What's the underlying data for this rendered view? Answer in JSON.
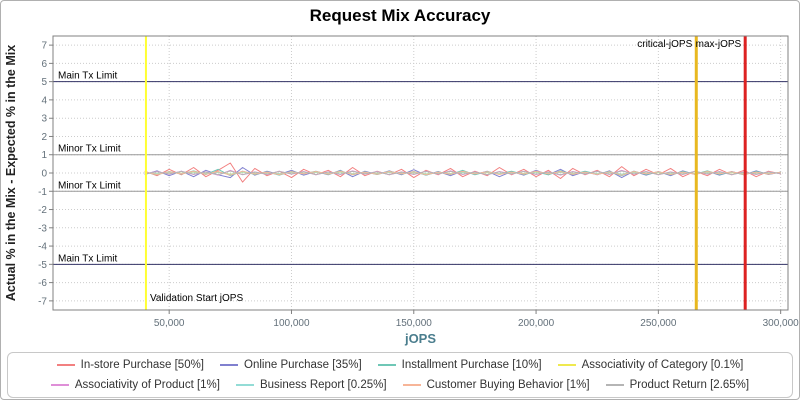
{
  "title": "Request Mix Accuracy",
  "colors": {
    "grid": "#cccccc",
    "plot_border": "#808080",
    "tick": "#808080",
    "tick_label": "#63707a",
    "axis_title_y": "#222222",
    "axis_title_x": "#4a7d8d",
    "ref_label": "#000000"
  },
  "chart_data": {
    "type": "line",
    "title": "Request Mix Accuracy",
    "xlabel": "jOPS",
    "ylabel": "Actual % in the Mix - Expected % in the Mix",
    "xlim": [
      2500,
      303000
    ],
    "ylim": [
      -7.5,
      7.5
    ],
    "grid": true,
    "legend_position": "bottom",
    "y_ticks": [
      -7,
      -6,
      -5,
      -4,
      -3,
      -2,
      -1,
      0,
      1,
      2,
      3,
      4,
      5,
      6,
      7
    ],
    "x_ticks": [
      {
        "value": 50000,
        "label": "50,000"
      },
      {
        "value": 100000,
        "label": "100,000"
      },
      {
        "value": 150000,
        "label": "150,000"
      },
      {
        "value": 200000,
        "label": "200,000"
      },
      {
        "value": 250000,
        "label": "250,000"
      },
      {
        "value": 300000,
        "label": "300,000"
      }
    ],
    "hlines": [
      {
        "label": "Main Tx Limit",
        "y": 5,
        "color": "#333366"
      },
      {
        "label": "Minor Tx Limit",
        "y": 1,
        "color": "#999999"
      },
      {
        "label": "Minor Tx Limit",
        "y": -1,
        "color": "#999999"
      },
      {
        "label": "Main Tx Limit",
        "y": -5,
        "color": "#333366"
      }
    ],
    "vlines": [
      {
        "label": "Validation Start jOPS",
        "x": 40500,
        "color": "#ffff33",
        "width": 2,
        "label_at": "bottom"
      },
      {
        "label": "critical-jOPS",
        "x": 265500,
        "color": "#e8b820",
        "width": 3,
        "label_at": "top"
      },
      {
        "label": "max-jOPS",
        "x": 285500,
        "color": "#dd2222",
        "width": 3,
        "label_at": "top"
      }
    ],
    "x": [
      40000,
      45000,
      50000,
      55000,
      60000,
      65000,
      70000,
      75000,
      80000,
      85000,
      90000,
      95000,
      100000,
      105000,
      110000,
      115000,
      120000,
      125000,
      130000,
      135000,
      140000,
      145000,
      150000,
      155000,
      160000,
      165000,
      170000,
      175000,
      180000,
      185000,
      190000,
      195000,
      200000,
      205000,
      210000,
      215000,
      220000,
      225000,
      230000,
      235000,
      240000,
      245000,
      250000,
      255000,
      260000,
      265000,
      270000,
      275000,
      280000,
      285000,
      290000,
      295000,
      300000
    ],
    "series": [
      {
        "name": "In-store Purchase [50%]",
        "color": "#f28080",
        "values": [
          0.1,
          -0.15,
          0.2,
          -0.1,
          0.3,
          -0.2,
          0.15,
          0.55,
          -0.5,
          0.25,
          -0.15,
          0.1,
          -0.25,
          0.2,
          -0.1,
          0.15,
          -0.2,
          0.3,
          -0.15,
          0.1,
          -0.1,
          0.2,
          -0.25,
          0.15,
          -0.1,
          0.25,
          -0.2,
          0.1,
          -0.15,
          0.3,
          -0.1,
          0.2,
          -0.2,
          0.15,
          -0.3,
          0.25,
          -0.1,
          0.15,
          -0.2,
          0.35,
          -0.15,
          0.2,
          -0.1,
          0.25,
          -0.2,
          0.1,
          -0.15,
          0.2,
          -0.1,
          0.15,
          -0.2,
          0.1,
          -0.05
        ]
      },
      {
        "name": "Online Purchase [35%]",
        "color": "#8080cf",
        "values": [
          -0.08,
          0.12,
          -0.15,
          0.1,
          -0.2,
          0.15,
          -0.1,
          -0.25,
          0.3,
          -0.12,
          0.1,
          -0.08,
          0.15,
          -0.12,
          0.08,
          -0.1,
          0.15,
          -0.2,
          0.1,
          -0.08,
          0.12,
          -0.1,
          0.18,
          -0.12,
          0.08,
          -0.15,
          0.12,
          -0.08,
          0.1,
          -0.2,
          0.08,
          -0.12,
          0.15,
          -0.1,
          0.2,
          -0.15,
          0.08,
          -0.1,
          0.12,
          -0.25,
          0.1,
          -0.12,
          0.08,
          -0.15,
          0.12,
          -0.08,
          0.1,
          -0.12,
          0.08,
          -0.1,
          0.12,
          -0.08,
          0.05
        ]
      },
      {
        "name": "Installment Purchase [10%]",
        "color": "#6fc7b6",
        "values": [
          0.05,
          -0.1,
          0.08,
          -0.06,
          0.12,
          -0.08,
          0.2,
          -0.15,
          0.1,
          -0.08,
          0.06,
          -0.12,
          0.08,
          -0.05,
          0.1,
          -0.08,
          0.12,
          -0.1,
          0.06,
          -0.08,
          0.1,
          -0.06,
          0.08,
          -0.12,
          0.06,
          -0.08,
          0.15,
          -0.1,
          0.08,
          -0.06,
          0.1,
          -0.08,
          0.06,
          -0.1,
          0.12,
          -0.08,
          0.1,
          -0.06,
          0.08,
          -0.15,
          0.1,
          -0.08,
          0.06,
          -0.1,
          0.08,
          -0.06,
          0.12,
          -0.08,
          0.06,
          -0.1,
          0.08,
          -0.06,
          0.04
        ]
      },
      {
        "name": "Associativity of Category [0.1%]",
        "color": "#efe94f",
        "values": [
          0.02,
          -0.04,
          0.03,
          -0.02,
          0.05,
          -0.03,
          0.04,
          -0.06,
          0.05,
          -0.03,
          0.02,
          -0.04,
          0.03,
          -0.02,
          0.04,
          -0.03,
          0.05,
          -0.04,
          0.02,
          -0.03,
          0.04,
          -0.02,
          0.03,
          -0.05,
          0.02,
          -0.03,
          0.04,
          -0.02,
          0.03,
          -0.04,
          0.02,
          -0.03,
          0.05,
          -0.02,
          0.04,
          -0.03,
          0.02,
          -0.04,
          0.03,
          -0.06,
          0.04,
          -0.02,
          0.03,
          -0.04,
          0.02,
          -0.03,
          0.04,
          -0.02,
          0.03,
          -0.04,
          0.02,
          -0.03,
          0.02
        ]
      },
      {
        "name": "Associativity of Product [1%]",
        "color": "#df8fd8",
        "values": [
          -0.05,
          0.08,
          -0.06,
          0.1,
          -0.08,
          0.06,
          -0.12,
          0.15,
          -0.1,
          0.06,
          -0.08,
          0.1,
          -0.06,
          0.08,
          -0.1,
          0.06,
          -0.08,
          0.12,
          -0.06,
          0.08,
          -0.1,
          0.06,
          -0.08,
          0.1,
          -0.06,
          0.12,
          -0.08,
          0.06,
          -0.1,
          0.08,
          -0.06,
          0.1,
          -0.08,
          0.06,
          -0.12,
          0.08,
          -0.06,
          0.1,
          -0.08,
          0.15,
          -0.06,
          0.08,
          -0.1,
          0.06,
          -0.08,
          0.1,
          -0.06,
          0.08,
          -0.1,
          0.06,
          -0.08,
          0.06,
          -0.04
        ]
      },
      {
        "name": "Business Report [0.25%]",
        "color": "#93dcd6",
        "values": [
          0.03,
          -0.05,
          0.04,
          -0.03,
          0.06,
          -0.04,
          0.05,
          -0.08,
          0.06,
          -0.04,
          0.03,
          -0.05,
          0.04,
          -0.03,
          0.05,
          -0.04,
          0.06,
          -0.05,
          0.03,
          -0.04,
          0.05,
          -0.03,
          0.04,
          -0.06,
          0.03,
          -0.04,
          0.05,
          -0.03,
          0.04,
          -0.05,
          0.03,
          -0.04,
          0.06,
          -0.03,
          0.05,
          -0.04,
          0.03,
          -0.05,
          0.04,
          -0.07,
          0.05,
          -0.03,
          0.04,
          -0.05,
          0.03,
          -0.04,
          0.05,
          -0.03,
          0.04,
          -0.05,
          0.03,
          -0.04,
          0.03
        ]
      },
      {
        "name": "Customer Buying Behavior [1%]",
        "color": "#f7b598",
        "values": [
          0.06,
          -0.09,
          0.07,
          -0.05,
          0.1,
          -0.07,
          0.08,
          -0.12,
          0.1,
          -0.06,
          0.05,
          -0.09,
          0.07,
          -0.05,
          0.08,
          -0.06,
          0.1,
          -0.08,
          0.05,
          -0.07,
          0.08,
          -0.05,
          0.07,
          -0.1,
          0.05,
          -0.07,
          0.09,
          -0.05,
          0.07,
          -0.08,
          0.05,
          -0.06,
          0.1,
          -0.05,
          0.08,
          -0.07,
          0.05,
          -0.08,
          0.07,
          -0.12,
          0.08,
          -0.05,
          0.07,
          -0.08,
          0.05,
          -0.07,
          0.08,
          -0.05,
          0.07,
          -0.08,
          0.05,
          -0.06,
          0.04
        ]
      },
      {
        "name": "Product Return [2.65%]",
        "color": "#b5b5b5",
        "values": [
          -0.04,
          0.06,
          -0.05,
          0.08,
          -0.06,
          0.05,
          -0.09,
          0.11,
          -0.08,
          0.05,
          -0.06,
          0.08,
          -0.05,
          0.06,
          -0.08,
          0.05,
          -0.06,
          0.09,
          -0.05,
          0.06,
          -0.08,
          0.05,
          -0.06,
          0.08,
          -0.05,
          0.09,
          -0.06,
          0.05,
          -0.08,
          0.06,
          -0.05,
          0.08,
          -0.06,
          0.05,
          -0.09,
          0.06,
          -0.05,
          0.08,
          -0.06,
          0.11,
          -0.05,
          0.06,
          -0.08,
          0.05,
          -0.06,
          0.08,
          -0.05,
          0.06,
          -0.08,
          0.05,
          -0.06,
          0.05,
          -0.03
        ]
      }
    ]
  }
}
